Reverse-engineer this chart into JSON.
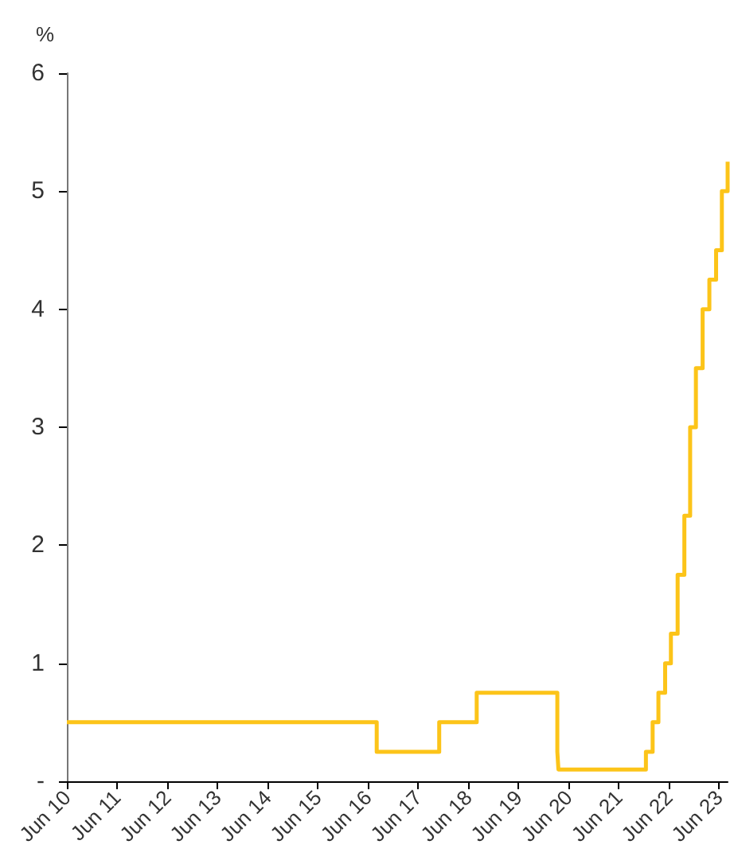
{
  "chart_data": {
    "type": "step",
    "ylabel": "%",
    "x": [
      "2010-06-01",
      "2016-08-04",
      "2017-11-02",
      "2018-08-02",
      "2020-03-11",
      "2020-03-19",
      "2021-12-16",
      "2022-02-03",
      "2022-03-17",
      "2022-05-05",
      "2022-06-16",
      "2022-08-04",
      "2022-09-22",
      "2022-11-03",
      "2022-12-15",
      "2023-02-02",
      "2023-03-23",
      "2023-05-11",
      "2023-06-22",
      "2023-08-03"
    ],
    "values": [
      0.5,
      0.25,
      0.5,
      0.75,
      0.25,
      0.1,
      0.25,
      0.5,
      0.75,
      1,
      1.25,
      1.75,
      2.25,
      3,
      3.5,
      4,
      4.25,
      4.5,
      5,
      5.25
    ],
    "color": "#fcc419",
    "xlim": [
      "2010-06-01",
      "2023-08-03"
    ],
    "xticks": [
      {
        "value": "2010-06-01",
        "label": "Jun 10"
      },
      {
        "value": "2011-06-01",
        "label": "Jun 11"
      },
      {
        "value": "2012-06-01",
        "label": "Jun 12"
      },
      {
        "value": "2013-06-01",
        "label": "Jun 13"
      },
      {
        "value": "2014-06-01",
        "label": "Jun 14"
      },
      {
        "value": "2015-06-01",
        "label": "Jun 15"
      },
      {
        "value": "2016-06-01",
        "label": "Jun 16"
      },
      {
        "value": "2017-06-01",
        "label": "Jun 17"
      },
      {
        "value": "2018-06-01",
        "label": "Jun 18"
      },
      {
        "value": "2019-06-01",
        "label": "Jun 19"
      },
      {
        "value": "2020-06-01",
        "label": "Jun 20"
      },
      {
        "value": "2021-06-01",
        "label": "Jun 21"
      },
      {
        "value": "2022-06-01",
        "label": "Jun 22"
      },
      {
        "value": "2023-06-01",
        "label": "Jun 23"
      }
    ],
    "ylim": [
      0,
      6
    ],
    "yticks": [
      {
        "value": 0,
        "label": "-"
      },
      1,
      2,
      3,
      4,
      5,
      6
    ],
    "grid": false,
    "marker": "none",
    "line_style": "solid"
  }
}
